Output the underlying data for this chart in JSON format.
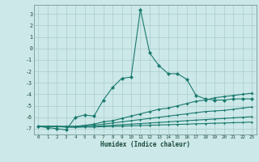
{
  "xlabel": "Humidex (Indice chaleur)",
  "background_color": "#cce8e8",
  "grid_color": "#aacccc",
  "line_color": "#1a7a6e",
  "xlim": [
    -0.5,
    23.5
  ],
  "ylim": [
    -7.5,
    3.8
  ],
  "yticks": [
    3,
    2,
    1,
    0,
    -1,
    -2,
    -3,
    -4,
    -5,
    -6,
    -7
  ],
  "xticks": [
    0,
    1,
    2,
    3,
    4,
    5,
    6,
    7,
    8,
    9,
    10,
    11,
    12,
    13,
    14,
    15,
    16,
    17,
    18,
    19,
    20,
    21,
    22,
    23
  ],
  "series": [
    {
      "x": [
        0,
        1,
        2,
        3,
        4,
        5,
        6,
        7,
        8,
        9,
        10,
        11,
        12,
        13,
        14,
        15,
        16,
        17,
        18,
        19,
        20,
        21,
        22,
        23
      ],
      "y": [
        -6.8,
        -6.9,
        -7.0,
        -7.1,
        -6.0,
        -5.8,
        -5.9,
        -4.5,
        -3.4,
        -2.6,
        -2.5,
        3.4,
        -0.4,
        -1.5,
        -2.2,
        -2.2,
        -2.7,
        -4.1,
        -4.4,
        -4.5,
        -4.5,
        -4.4,
        -4.4,
        -4.4
      ],
      "marker": "D",
      "ms": 2.5
    },
    {
      "x": [
        0,
        1,
        2,
        3,
        4,
        5,
        6,
        7,
        8,
        9,
        10,
        11,
        12,
        13,
        14,
        15,
        16,
        17,
        18,
        19,
        20,
        21,
        22,
        23
      ],
      "y": [
        -6.8,
        -6.8,
        -6.8,
        -6.8,
        -6.8,
        -6.7,
        -6.6,
        -6.4,
        -6.3,
        -6.1,
        -5.9,
        -5.7,
        -5.5,
        -5.3,
        -5.2,
        -5.0,
        -4.8,
        -4.6,
        -4.5,
        -4.3,
        -4.2,
        -4.1,
        -4.0,
        -3.9
      ],
      "marker": "D",
      "ms": 2.0
    },
    {
      "x": [
        0,
        1,
        2,
        3,
        4,
        5,
        6,
        7,
        8,
        9,
        10,
        11,
        12,
        13,
        14,
        15,
        16,
        17,
        18,
        19,
        20,
        21,
        22,
        23
      ],
      "y": [
        -6.8,
        -6.8,
        -6.8,
        -6.8,
        -6.8,
        -6.75,
        -6.7,
        -6.6,
        -6.5,
        -6.4,
        -6.3,
        -6.2,
        -6.1,
        -6.0,
        -5.9,
        -5.8,
        -5.7,
        -5.6,
        -5.5,
        -5.45,
        -5.4,
        -5.3,
        -5.2,
        -5.1
      ],
      "marker": "D",
      "ms": 1.5
    },
    {
      "x": [
        0,
        1,
        2,
        3,
        4,
        5,
        6,
        7,
        8,
        9,
        10,
        11,
        12,
        13,
        14,
        15,
        16,
        17,
        18,
        19,
        20,
        21,
        22,
        23
      ],
      "y": [
        -6.8,
        -6.8,
        -6.8,
        -6.85,
        -6.85,
        -6.82,
        -6.8,
        -6.75,
        -6.7,
        -6.65,
        -6.6,
        -6.55,
        -6.5,
        -6.45,
        -6.4,
        -6.35,
        -6.3,
        -6.25,
        -6.2,
        -6.15,
        -6.1,
        -6.05,
        -6.0,
        -5.95
      ],
      "marker": "D",
      "ms": 1.5
    },
    {
      "x": [
        0,
        1,
        2,
        3,
        4,
        5,
        6,
        7,
        8,
        9,
        10,
        11,
        12,
        13,
        14,
        15,
        16,
        17,
        18,
        19,
        20,
        21,
        22,
        23
      ],
      "y": [
        -6.8,
        -6.82,
        -6.82,
        -6.85,
        -6.87,
        -6.85,
        -6.85,
        -6.82,
        -6.8,
        -6.78,
        -6.75,
        -6.72,
        -6.7,
        -6.67,
        -6.65,
        -6.62,
        -6.6,
        -6.57,
        -6.55,
        -6.52,
        -6.5,
        -6.47,
        -6.45,
        -6.42
      ],
      "marker": "D",
      "ms": 1.5
    }
  ]
}
